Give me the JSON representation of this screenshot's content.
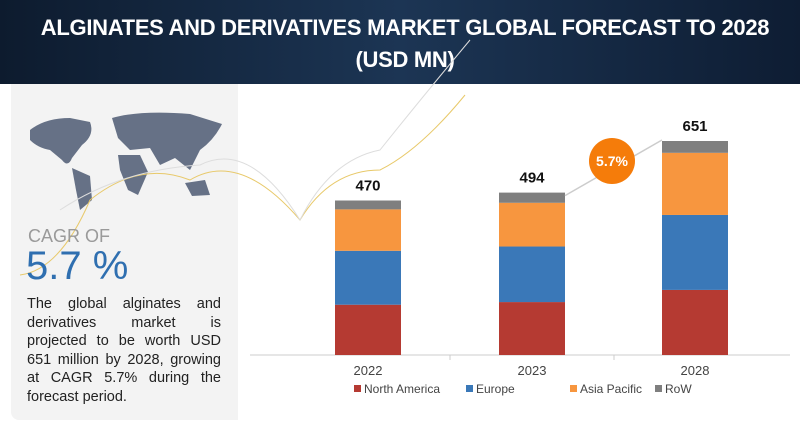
{
  "header": {
    "title": "ALGINATES AND DERIVATIVES MARKET GLOBAL FORECAST TO 2028 (USD MN)"
  },
  "panel": {
    "cagr_label": "CAGR OF",
    "cagr_value": "5.7 %",
    "description": "The global alginates and derivatives market is projected to be worth USD 651 million by 2028, growing at CAGR 5.7% during the forecast period."
  },
  "chart_data": {
    "type": "bar",
    "stacked": true,
    "title": "Alginates and Derivatives Market Global Forecast to 2028 (USD MN)",
    "categories": [
      "2022",
      "2023",
      "2028"
    ],
    "totals": [
      "470",
      "494",
      "651"
    ],
    "series": [
      {
        "name": "North America",
        "color": "#b53a32",
        "values": [
          153,
          161,
          198
        ]
      },
      {
        "name": "Europe",
        "color": "#3a78b8",
        "values": [
          164,
          169,
          228
        ]
      },
      {
        "name": "Asia Pacific",
        "color": "#f7963f",
        "values": [
          126,
          133,
          189
        ]
      },
      {
        "name": "RoW",
        "color": "#7f7f7f",
        "values": [
          27,
          31,
          36
        ]
      }
    ],
    "ylim": [
      0,
      651
    ],
    "grid": false,
    "legend_position": "bottom",
    "annotation": "5.7%",
    "annotation_color": "#f57c0a"
  }
}
